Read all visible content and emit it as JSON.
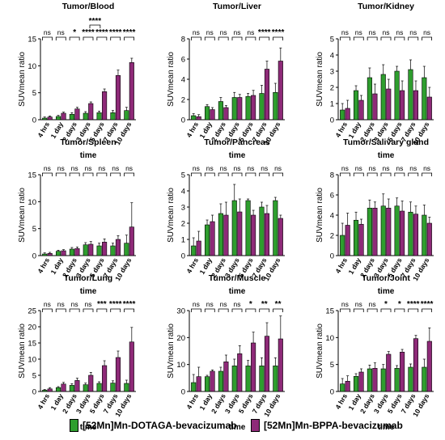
{
  "colors": {
    "dotaga": "#2e9e2e",
    "bppa": "#8e2a78"
  },
  "legend": {
    "dotaga": "[52Mn]Mn-DOTAGA-bevacizumab",
    "bppa": "[52Mn]Mn-BPPA-bevacizumab"
  },
  "chart_data": [
    {
      "type": "bar",
      "title": "Tumor/Blood",
      "xlabel": "time",
      "ylabel": "SUVmean ratio",
      "ylim": [
        0,
        15
      ],
      "yticks": [
        0,
        5,
        10,
        15
      ],
      "categories": [
        "4 hrs",
        "1 day",
        "2 days",
        "3 days",
        "5 days",
        "7 days",
        "10 days"
      ],
      "series": [
        {
          "name": "[52Mn]Mn-DOTAGA-bevacizumab",
          "values": [
            0.3,
            0.6,
            1.0,
            1.2,
            1.3,
            1.3,
            1.7
          ],
          "errors": [
            0.2,
            0.2,
            0.3,
            0.3,
            0.3,
            0.4,
            0.6
          ]
        },
        {
          "name": "[52Mn]Mn-BPPA-bevacizumab",
          "values": [
            0.5,
            1.2,
            2.0,
            3.0,
            5.2,
            8.2,
            10.6
          ],
          "errors": [
            0.2,
            0.2,
            0.3,
            0.3,
            0.5,
            1.0,
            0.8
          ]
        }
      ],
      "significance": [
        "ns",
        "ns",
        "*",
        "****",
        "****",
        "****",
        "****"
      ],
      "extra_brackets": [
        {
          "from": 3,
          "to": 4,
          "label": "****"
        }
      ]
    },
    {
      "type": "bar",
      "title": "Tumor/Liver",
      "xlabel": "time",
      "ylabel": "SUVmean ratio",
      "ylim": [
        0,
        8
      ],
      "yticks": [
        0,
        2,
        4,
        6,
        8
      ],
      "categories": [
        "4 hrs",
        "1 day",
        "2 days",
        "3 days",
        "5 days",
        "7 days",
        "10 days"
      ],
      "series": [
        {
          "name": "[52Mn]Mn-DOTAGA-bevacizumab",
          "values": [
            0.4,
            1.3,
            1.8,
            2.2,
            2.3,
            2.6,
            2.7
          ],
          "errors": [
            0.2,
            0.2,
            0.4,
            0.5,
            0.3,
            0.8,
            0.9
          ]
        },
        {
          "name": "[52Mn]Mn-BPPA-bevacizumab",
          "values": [
            0.3,
            1.0,
            1.2,
            2.2,
            2.4,
            5.0,
            5.8
          ],
          "errors": [
            0.2,
            0.2,
            0.2,
            0.3,
            0.5,
            0.8,
            1.3
          ]
        }
      ],
      "significance": [
        "ns",
        "ns",
        "ns",
        "ns",
        "ns",
        "****",
        "****"
      ],
      "extra_brackets": []
    },
    {
      "type": "bar",
      "title": "Tumor/Kidney",
      "xlabel": "time",
      "ylabel": "SUVmean ratio",
      "ylim": [
        0,
        5
      ],
      "yticks": [
        0,
        1,
        2,
        3,
        4,
        5
      ],
      "categories": [
        "4 hrs",
        "1 day",
        "2 days",
        "3 days",
        "5 days",
        "7 days",
        "10 days"
      ],
      "series": [
        {
          "name": "[52Mn]Mn-DOTAGA-bevacizumab",
          "values": [
            0.6,
            1.8,
            2.6,
            2.8,
            3.0,
            3.1,
            2.6
          ],
          "errors": [
            0.4,
            0.3,
            0.6,
            0.6,
            0.3,
            0.6,
            0.7
          ]
        },
        {
          "name": "[52Mn]Mn-BPPA-bevacizumab",
          "values": [
            0.7,
            1.2,
            1.6,
            1.9,
            1.8,
            1.8,
            1.4
          ],
          "errors": [
            0.5,
            0.3,
            0.6,
            0.6,
            0.6,
            0.6,
            0.6
          ]
        }
      ],
      "significance": [
        "ns",
        "ns",
        "ns",
        "ns",
        "ns",
        "ns",
        "ns"
      ],
      "extra_brackets": []
    },
    {
      "type": "bar",
      "title": "Tumor/Spleen",
      "xlabel": "time",
      "ylabel": "SUVmean ratio",
      "ylim": [
        0,
        15
      ],
      "yticks": [
        0,
        5,
        10,
        15
      ],
      "categories": [
        "4 hrs",
        "1 day",
        "2 days",
        "3 days",
        "5 days",
        "7 days",
        "10 days"
      ],
      "series": [
        {
          "name": "[52Mn]Mn-DOTAGA-bevacizumab",
          "values": [
            0.3,
            0.8,
            1.2,
            2.0,
            1.8,
            1.8,
            2.3
          ],
          "errors": [
            0.2,
            0.2,
            0.3,
            0.4,
            0.5,
            0.5,
            1.5
          ]
        },
        {
          "name": "[52Mn]Mn-BPPA-bevacizumab",
          "values": [
            0.4,
            0.9,
            1.3,
            2.1,
            2.5,
            3.0,
            5.3
          ],
          "errors": [
            0.2,
            0.2,
            0.3,
            0.5,
            0.6,
            0.7,
            4.5
          ]
        }
      ],
      "significance": [
        "ns",
        "ns",
        "ns",
        "ns",
        "ns",
        "ns",
        "ns"
      ],
      "extra_brackets": []
    },
    {
      "type": "bar",
      "title": "Tumor/Pancreas",
      "xlabel": "time",
      "ylabel": "SUVmean ratio",
      "ylim": [
        0,
        5
      ],
      "yticks": [
        0,
        1,
        2,
        3,
        4,
        5
      ],
      "categories": [
        "4 hrs",
        "1 day",
        "2 days",
        "3 days",
        "5 days",
        "7 days",
        "10 days"
      ],
      "series": [
        {
          "name": "[52Mn]Mn-DOTAGA-bevacizumab",
          "values": [
            0.6,
            1.9,
            2.6,
            3.4,
            3.4,
            3.0,
            3.4
          ],
          "errors": [
            0.5,
            0.3,
            0.6,
            1.0,
            0.1,
            0.3,
            0.2
          ]
        },
        {
          "name": "[52Mn]Mn-BPPA-bevacizumab",
          "values": [
            0.9,
            2.1,
            2.5,
            2.7,
            2.5,
            2.6,
            2.3
          ],
          "errors": [
            0.6,
            0.4,
            0.8,
            0.8,
            0.3,
            0.5,
            0.2
          ]
        }
      ],
      "significance": [
        "ns",
        "ns",
        "ns",
        "ns",
        "ns",
        "ns",
        "ns"
      ],
      "extra_brackets": []
    },
    {
      "type": "bar",
      "title": "Tumor/Salivary gland",
      "xlabel": "time",
      "ylabel": "SUVmean ratio",
      "ylim": [
        0,
        8
      ],
      "yticks": [
        0,
        2,
        4,
        6,
        8
      ],
      "categories": [
        "4 hrs",
        "1 day",
        "2 days",
        "3 days",
        "5 days",
        "7 days",
        "10 days"
      ],
      "series": [
        {
          "name": "[52Mn]Mn-DOTAGA-bevacizumab",
          "values": [
            2.0,
            3.5,
            4.7,
            4.9,
            4.9,
            4.3,
            4.0
          ],
          "errors": [
            1.2,
            0.8,
            0.8,
            1.2,
            0.8,
            1.0,
            1.0
          ]
        },
        {
          "name": "[52Mn]Mn-BPPA-bevacizumab",
          "values": [
            3.0,
            3.1,
            4.7,
            4.7,
            4.4,
            4.1,
            3.2
          ],
          "errors": [
            1.2,
            0.5,
            0.6,
            0.9,
            1.0,
            0.8,
            0.6
          ]
        }
      ],
      "significance": [
        "ns",
        "ns",
        "ns",
        "ns",
        "ns",
        "ns",
        "ns"
      ],
      "extra_brackets": []
    },
    {
      "type": "bar",
      "title": "Tumor/Lung",
      "xlabel": "time",
      "ylabel": "SUVmean ratio",
      "ylim": [
        0,
        25
      ],
      "yticks": [
        0,
        5,
        10,
        15,
        20,
        25
      ],
      "categories": [
        "4 hrs",
        "1 day",
        "2 days",
        "3 days",
        "5 days",
        "7 days",
        "10 days"
      ],
      "series": [
        {
          "name": "[52Mn]Mn-DOTAGA-bevacizumab",
          "values": [
            0.4,
            1.2,
            1.9,
            2.1,
            2.5,
            2.6,
            2.5
          ],
          "errors": [
            0.2,
            0.3,
            0.5,
            0.5,
            0.5,
            0.7,
            1.0
          ]
        },
        {
          "name": "[52Mn]Mn-BPPA-bevacizumab",
          "values": [
            0.8,
            2.3,
            3.4,
            5.0,
            8.0,
            10.5,
            15.3
          ],
          "errors": [
            0.4,
            0.5,
            0.7,
            0.9,
            1.5,
            2.0,
            4.5
          ]
        }
      ],
      "significance": [
        "ns",
        "ns",
        "ns",
        "ns",
        "***",
        "****",
        "****"
      ],
      "extra_brackets": []
    },
    {
      "type": "bar",
      "title": "Tumor/Muscle",
      "xlabel": "time",
      "ylabel": "SUVmean ratio",
      "ylim": [
        0,
        30
      ],
      "yticks": [
        0,
        10,
        20,
        30
      ],
      "categories": [
        "4 hrs",
        "1 day",
        "2 days",
        "3 days",
        "5 days",
        "7 days",
        "10 days"
      ],
      "series": [
        {
          "name": "[52Mn]Mn-DOTAGA-bevacizumab",
          "values": [
            3.3,
            5.5,
            7.5,
            9.5,
            9.5,
            9.5,
            9.5
          ],
          "errors": [
            3.0,
            0.5,
            1.5,
            2.5,
            2.0,
            3.0,
            3.0
          ]
        },
        {
          "name": "[52Mn]Mn-BPPA-bevacizumab",
          "values": [
            5.5,
            7.5,
            11.0,
            14.0,
            18.0,
            20.5,
            19.5
          ],
          "errors": [
            3.5,
            0.5,
            2.5,
            3.0,
            4.0,
            5.0,
            8.5
          ]
        }
      ],
      "significance": [
        "ns",
        "ns",
        "ns",
        "ns",
        "*",
        "**",
        "**"
      ],
      "extra_brackets": []
    },
    {
      "type": "bar",
      "title": "Tumor/Joint",
      "xlabel": "time",
      "ylabel": "SUVmean ratio",
      "ylim": [
        0,
        15
      ],
      "yticks": [
        0,
        5,
        10,
        15
      ],
      "categories": [
        "4 hrs",
        "1 day",
        "2 days",
        "3 days",
        "5 days",
        "7 days",
        "10 days"
      ],
      "series": [
        {
          "name": "[52Mn]Mn-DOTAGA-bevacizumab",
          "values": [
            1.4,
            2.8,
            4.2,
            4.2,
            4.3,
            4.5,
            4.5
          ],
          "errors": [
            1.0,
            0.5,
            0.7,
            0.8,
            0.5,
            0.6,
            1.5
          ]
        },
        {
          "name": "[52Mn]Mn-BPPA-bevacizumab",
          "values": [
            1.9,
            3.6,
            4.3,
            6.9,
            7.3,
            9.8,
            9.3
          ],
          "errors": [
            1.0,
            0.6,
            1.0,
            0.5,
            0.5,
            0.6,
            2.5
          ]
        }
      ],
      "significance": [
        "ns",
        "ns",
        "ns",
        "*",
        "*",
        "****",
        "****"
      ],
      "extra_brackets": []
    }
  ]
}
